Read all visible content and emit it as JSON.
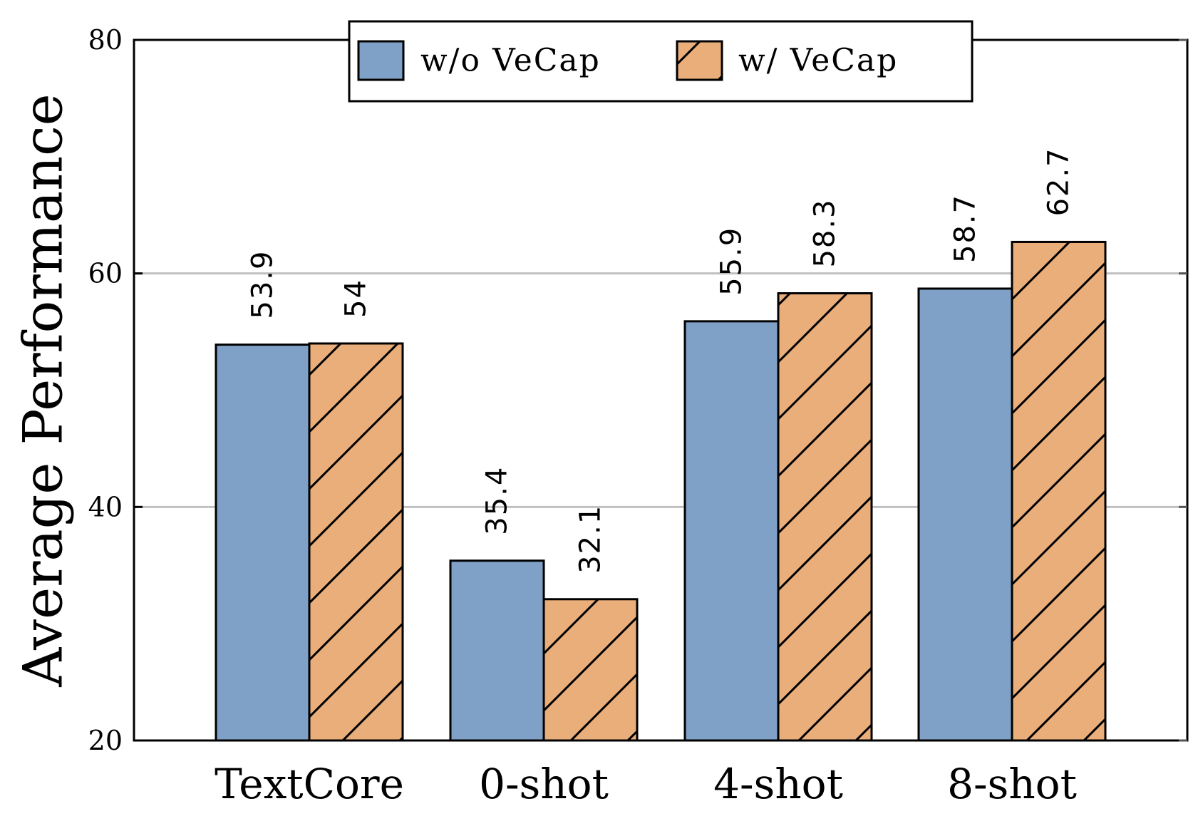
{
  "chart_data": {
    "type": "bar",
    "categories": [
      "TextCore",
      "0-shot",
      "4-shot",
      "8-shot"
    ],
    "series": [
      {
        "name": "w/o VeCap",
        "values": [
          53.9,
          35.4,
          55.9,
          58.7
        ],
        "color": "#7fa0c7",
        "hatch": false
      },
      {
        "name": "w/ VeCap",
        "values": [
          54,
          32.1,
          58.3,
          62.7
        ],
        "color": "#eaae7b",
        "hatch": true
      }
    ],
    "ylabel": "Average Performance",
    "xlabel": "",
    "ylim": [
      20,
      80
    ],
    "yticks": [
      20,
      40,
      60,
      80
    ],
    "yticks_with_grid": [
      40,
      60
    ],
    "grid": true,
    "legend_position": "top-center",
    "data_labels": [
      "53.9",
      "35.4",
      "55.9",
      "58.7",
      "54",
      "32.1",
      "58.3",
      "62.7"
    ]
  }
}
